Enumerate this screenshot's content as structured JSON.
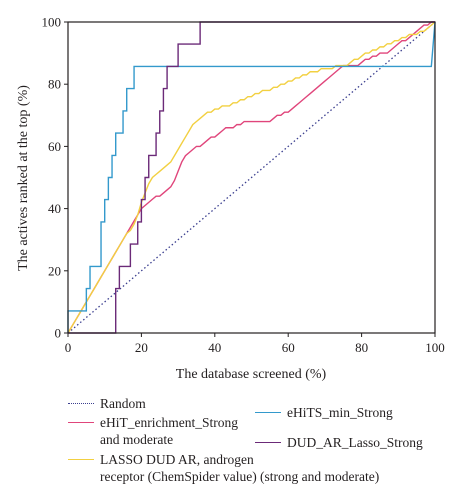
{
  "chart_data": {
    "type": "line",
    "xlabel": "The database screened (%)",
    "ylabel": "The actives ranked at the top (%)",
    "xlim": [
      0,
      100
    ],
    "ylim": [
      0,
      100
    ],
    "x_ticks": [
      0,
      20,
      40,
      60,
      80,
      100
    ],
    "y_ticks": [
      0,
      20,
      40,
      60,
      80,
      100
    ],
    "grid": false,
    "legend_position": "bottom",
    "series": [
      {
        "name": "Random",
        "color": "#3b3f8f",
        "style": "dotted",
        "points": [
          [
            0,
            0
          ],
          [
            100,
            100
          ]
        ]
      },
      {
        "name": "eHiT_enrichment_Strong\nand moderate",
        "color": "#e0457b",
        "style": "solid",
        "points": [
          [
            0,
            0
          ],
          [
            1,
            2
          ],
          [
            2,
            4
          ],
          [
            3,
            6
          ],
          [
            4,
            8
          ],
          [
            5,
            10
          ],
          [
            6,
            12
          ],
          [
            7,
            14
          ],
          [
            8,
            16
          ],
          [
            9,
            18
          ],
          [
            10,
            20
          ],
          [
            11,
            22
          ],
          [
            12,
            24
          ],
          [
            13,
            26
          ],
          [
            14,
            28
          ],
          [
            15,
            30
          ],
          [
            16,
            32
          ],
          [
            17,
            34
          ],
          [
            18,
            36
          ],
          [
            19,
            38
          ],
          [
            20,
            40
          ],
          [
            21,
            41
          ],
          [
            22,
            42
          ],
          [
            23,
            43
          ],
          [
            24,
            44
          ],
          [
            25,
            44
          ],
          [
            26,
            45
          ],
          [
            27,
            46
          ],
          [
            28,
            47
          ],
          [
            29,
            49
          ],
          [
            30,
            52
          ],
          [
            31,
            55
          ],
          [
            32,
            57
          ],
          [
            33,
            58
          ],
          [
            34,
            59
          ],
          [
            35,
            60
          ],
          [
            36,
            60
          ],
          [
            37,
            61
          ],
          [
            38,
            62
          ],
          [
            39,
            63
          ],
          [
            40,
            63
          ],
          [
            41,
            64
          ],
          [
            42,
            65
          ],
          [
            43,
            66
          ],
          [
            44,
            66
          ],
          [
            45,
            66
          ],
          [
            46,
            67
          ],
          [
            47,
            67
          ],
          [
            48,
            68
          ],
          [
            49,
            68
          ],
          [
            50,
            68
          ],
          [
            51,
            68
          ],
          [
            52,
            68
          ],
          [
            53,
            68
          ],
          [
            54,
            68
          ],
          [
            55,
            68
          ],
          [
            56,
            69
          ],
          [
            57,
            70
          ],
          [
            58,
            70
          ],
          [
            59,
            71
          ],
          [
            60,
            71
          ],
          [
            61,
            72
          ],
          [
            62,
            73
          ],
          [
            63,
            74
          ],
          [
            64,
            75
          ],
          [
            65,
            76
          ],
          [
            66,
            77
          ],
          [
            67,
            78
          ],
          [
            68,
            79
          ],
          [
            69,
            80
          ],
          [
            70,
            81
          ],
          [
            71,
            82
          ],
          [
            72,
            83
          ],
          [
            73,
            84
          ],
          [
            74,
            85
          ],
          [
            75,
            86
          ],
          [
            76,
            86
          ],
          [
            77,
            86
          ],
          [
            78,
            86
          ],
          [
            79,
            86
          ],
          [
            80,
            87
          ],
          [
            81,
            88
          ],
          [
            82,
            88
          ],
          [
            83,
            89
          ],
          [
            84,
            89
          ],
          [
            85,
            90
          ],
          [
            86,
            90
          ],
          [
            87,
            90
          ],
          [
            88,
            91
          ],
          [
            89,
            92
          ],
          [
            90,
            93
          ],
          [
            91,
            94
          ],
          [
            92,
            94
          ],
          [
            93,
            95
          ],
          [
            94,
            96
          ],
          [
            95,
            97
          ],
          [
            96,
            98
          ],
          [
            97,
            99
          ],
          [
            98,
            99
          ],
          [
            99,
            100
          ],
          [
            100,
            100
          ]
        ]
      },
      {
        "name": "eHiTS_min_Strong",
        "color": "#3399cc",
        "style": "solid",
        "points": [
          [
            0,
            0
          ],
          [
            0,
            7.1
          ],
          [
            5,
            7.1
          ],
          [
            5,
            14.3
          ],
          [
            6,
            14.3
          ],
          [
            6,
            21.4
          ],
          [
            9,
            21.4
          ],
          [
            9,
            35.7
          ],
          [
            10,
            35.7
          ],
          [
            10,
            42.9
          ],
          [
            11,
            42.9
          ],
          [
            11,
            50
          ],
          [
            12,
            50
          ],
          [
            12,
            57.1
          ],
          [
            13,
            57.1
          ],
          [
            13,
            64.3
          ],
          [
            15,
            64.3
          ],
          [
            15,
            71.4
          ],
          [
            16,
            71.4
          ],
          [
            16,
            78.6
          ],
          [
            18,
            78.6
          ],
          [
            18,
            85.7
          ],
          [
            99,
            85.7
          ],
          [
            100,
            100
          ]
        ]
      },
      {
        "name": "LASSO DUD AR, androgen\nreceptor (ChemSpider value) (strong and moderate)",
        "color": "#f2d041",
        "style": "solid",
        "points": [
          [
            0,
            0
          ],
          [
            1,
            2
          ],
          [
            2,
            4
          ],
          [
            3,
            6
          ],
          [
            4,
            8
          ],
          [
            5,
            10
          ],
          [
            6,
            12
          ],
          [
            7,
            14
          ],
          [
            8,
            16
          ],
          [
            9,
            18
          ],
          [
            10,
            20
          ],
          [
            11,
            22
          ],
          [
            12,
            24
          ],
          [
            13,
            26
          ],
          [
            14,
            28
          ],
          [
            15,
            30
          ],
          [
            16,
            32
          ],
          [
            17,
            33
          ],
          [
            18,
            35
          ],
          [
            19,
            38
          ],
          [
            20,
            42
          ],
          [
            21,
            45
          ],
          [
            22,
            48
          ],
          [
            23,
            50
          ],
          [
            24,
            51
          ],
          [
            25,
            52
          ],
          [
            26,
            53
          ],
          [
            27,
            54
          ],
          [
            28,
            55
          ],
          [
            29,
            57
          ],
          [
            30,
            59
          ],
          [
            31,
            61
          ],
          [
            32,
            63
          ],
          [
            33,
            65
          ],
          [
            34,
            67
          ],
          [
            35,
            68
          ],
          [
            36,
            69
          ],
          [
            37,
            70
          ],
          [
            38,
            71
          ],
          [
            39,
            71
          ],
          [
            40,
            72
          ],
          [
            41,
            72
          ],
          [
            42,
            73
          ],
          [
            43,
            73
          ],
          [
            44,
            73
          ],
          [
            45,
            74
          ],
          [
            46,
            74
          ],
          [
            47,
            75
          ],
          [
            48,
            75
          ],
          [
            49,
            76
          ],
          [
            50,
            76
          ],
          [
            51,
            77
          ],
          [
            52,
            77
          ],
          [
            53,
            78
          ],
          [
            54,
            78
          ],
          [
            55,
            78
          ],
          [
            56,
            79
          ],
          [
            57,
            79
          ],
          [
            58,
            80
          ],
          [
            59,
            80
          ],
          [
            60,
            81
          ],
          [
            61,
            81
          ],
          [
            62,
            82
          ],
          [
            63,
            82
          ],
          [
            64,
            83
          ],
          [
            65,
            83
          ],
          [
            66,
            84
          ],
          [
            67,
            84
          ],
          [
            68,
            84
          ],
          [
            69,
            85
          ],
          [
            70,
            85
          ],
          [
            71,
            85
          ],
          [
            72,
            85
          ],
          [
            73,
            86
          ],
          [
            74,
            86
          ],
          [
            75,
            86
          ],
          [
            76,
            86
          ],
          [
            77,
            87
          ],
          [
            78,
            88
          ],
          [
            79,
            88
          ],
          [
            80,
            89
          ],
          [
            81,
            90
          ],
          [
            82,
            90
          ],
          [
            83,
            91
          ],
          [
            84,
            91
          ],
          [
            85,
            92
          ],
          [
            86,
            92
          ],
          [
            87,
            93
          ],
          [
            88,
            93
          ],
          [
            89,
            94
          ],
          [
            90,
            94
          ],
          [
            91,
            95
          ],
          [
            92,
            95
          ],
          [
            93,
            96
          ],
          [
            94,
            96
          ],
          [
            95,
            96
          ],
          [
            96,
            97
          ],
          [
            97,
            97
          ],
          [
            98,
            98
          ],
          [
            99,
            99
          ],
          [
            100,
            100
          ]
        ]
      },
      {
        "name": "DUD_AR_Lasso_Strong",
        "color": "#6b2a78",
        "style": "solid",
        "points": [
          [
            0,
            0
          ],
          [
            13,
            0
          ],
          [
            13,
            14.3
          ],
          [
            14,
            14.3
          ],
          [
            14,
            21.4
          ],
          [
            17,
            21.4
          ],
          [
            17,
            28.6
          ],
          [
            19,
            28.6
          ],
          [
            19,
            35.7
          ],
          [
            20,
            35.7
          ],
          [
            20,
            42.9
          ],
          [
            21,
            42.9
          ],
          [
            21,
            50
          ],
          [
            22,
            50
          ],
          [
            22,
            57.1
          ],
          [
            24,
            57.1
          ],
          [
            24,
            64.3
          ],
          [
            25,
            64.3
          ],
          [
            25,
            71.4
          ],
          [
            26,
            71.4
          ],
          [
            26,
            78.6
          ],
          [
            27,
            78.6
          ],
          [
            27,
            85.7
          ],
          [
            30,
            85.7
          ],
          [
            30,
            92.9
          ],
          [
            36,
            92.9
          ],
          [
            36,
            100
          ],
          [
            100,
            100
          ]
        ]
      }
    ]
  },
  "legend": {
    "items": [
      {
        "label": "Random",
        "color": "#3b3f8f",
        "style": "dotted"
      },
      {
        "label": "eHiT_enrichment_Strong\nand moderate",
        "color": "#e0457b",
        "style": "solid"
      },
      {
        "label": "eHiTS_min_Strong",
        "color": "#3399cc",
        "style": "solid"
      },
      {
        "label": "LASSO DUD AR, androgen\nreceptor (ChemSpider value) (strong and moderate)",
        "color": "#f2d041",
        "style": "solid"
      },
      {
        "label": "DUD_AR_Lasso_Strong",
        "color": "#6b2a78",
        "style": "solid"
      }
    ]
  }
}
